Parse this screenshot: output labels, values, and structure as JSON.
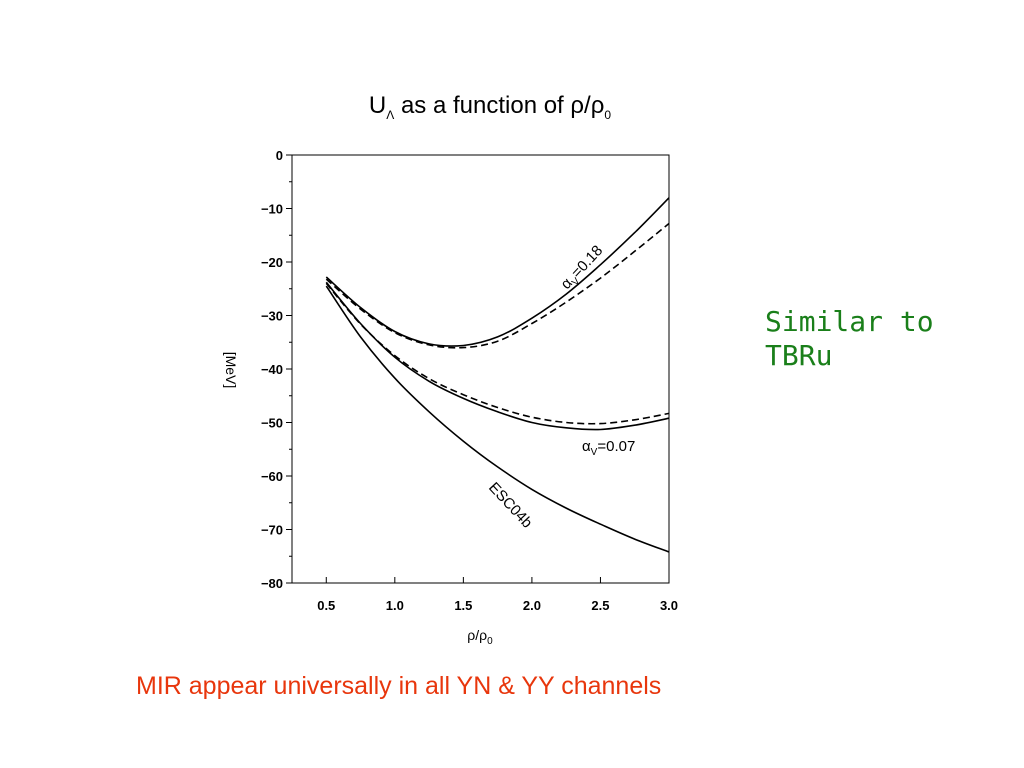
{
  "chart_data": {
    "type": "line",
    "title_main": "U",
    "title_sub": "Λ",
    "title_rest": " as a function of ρ/ρ",
    "title_sub2": "0",
    "xlabel_main": "ρ/ρ",
    "xlabel_sub": "0",
    "ylabel": "[MeV]",
    "xlim": [
      0.25,
      3.0
    ],
    "ylim": [
      -80,
      0
    ],
    "xticks": [
      "0.5",
      "1.0",
      "1.5",
      "2.0",
      "2.5",
      "3.0"
    ],
    "yticks": [
      "0",
      "-10",
      "-20",
      "-30",
      "-40",
      "-50",
      "-60",
      "-70",
      "-80"
    ],
    "series": [
      {
        "name": "αv=0.18",
        "style": "solid",
        "x": [
          0.5,
          0.75,
          1.0,
          1.25,
          1.5,
          1.75,
          2.0,
          2.25,
          2.5,
          2.75,
          3.0
        ],
        "y": [
          -22.8,
          -28.5,
          -33.0,
          -35.3,
          -35.6,
          -34.0,
          -30.5,
          -26.0,
          -20.5,
          -14.5,
          -8.0
        ]
      },
      {
        "name": "",
        "style": "dashed",
        "x": [
          0.5,
          0.75,
          1.0,
          1.25,
          1.5,
          1.75,
          2.0,
          2.25,
          2.5,
          2.75,
          3.0
        ],
        "y": [
          -23.2,
          -28.8,
          -33.2,
          -35.5,
          -36.0,
          -34.8,
          -31.5,
          -27.5,
          -23.0,
          -18.0,
          -12.8
        ]
      },
      {
        "name": "αv=0.07",
        "style": "solid",
        "x": [
          0.5,
          0.75,
          1.0,
          1.25,
          1.5,
          1.75,
          2.0,
          2.25,
          2.5,
          2.75,
          3.0
        ],
        "y": [
          -23.8,
          -31.5,
          -37.8,
          -42.3,
          -45.5,
          -48.0,
          -50.0,
          -51.0,
          -51.3,
          -50.5,
          -49.2
        ]
      },
      {
        "name": "",
        "style": "dashed",
        "x": [
          0.5,
          0.75,
          1.0,
          1.25,
          1.5,
          1.75,
          2.0,
          2.25,
          2.5,
          2.75,
          3.0
        ],
        "y": [
          -24.0,
          -31.6,
          -37.5,
          -41.8,
          -44.8,
          -47.2,
          -49.0,
          -50.0,
          -50.2,
          -49.5,
          -48.3
        ]
      },
      {
        "name": "ESC04b",
        "style": "solid",
        "x": [
          0.5,
          0.75,
          1.0,
          1.25,
          1.5,
          1.75,
          2.0,
          2.25,
          2.5,
          2.75,
          3.0
        ],
        "y": [
          -24.5,
          -34.0,
          -41.7,
          -48.0,
          -53.5,
          -58.3,
          -62.5,
          -66.0,
          -69.0,
          -71.8,
          -74.2
        ]
      }
    ],
    "curve_labels": [
      {
        "main": "α",
        "sub": "V",
        "rest": "=0.18"
      },
      {
        "main": "α",
        "sub": "V",
        "rest": "=0.07"
      },
      {
        "main": "ESC04b",
        "sub": "",
        "rest": ""
      }
    ]
  },
  "notes": {
    "side": "Similar to\nTBRu",
    "bottom": "MIR appear universally in all YN & YY channels"
  },
  "colors": {
    "side_note": "#1a7f1a",
    "bottom_note": "#e8360c",
    "ink": "#000000"
  }
}
